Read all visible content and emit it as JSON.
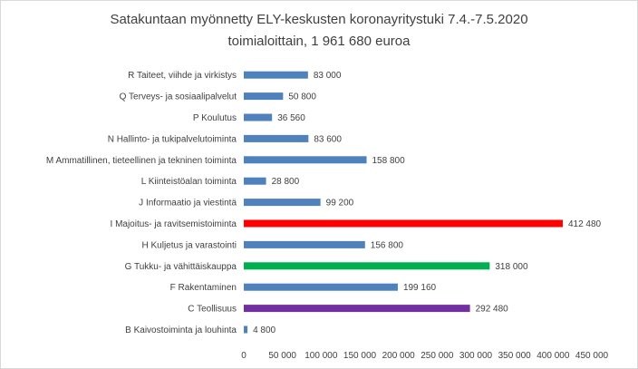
{
  "chart_data": {
    "type": "bar",
    "orientation": "horizontal",
    "title_line1": "Satakuntaan myönnetty ELY-keskusten koronayritystuki 7.4.-7.5.2020",
    "title_line2": "toimialoittain, 1 961 680 euroa",
    "categories": [
      "R  Taiteet, viihde ja virkistys",
      "Q  Terveys- ja sosiaalipalvelut",
      "P  Koulutus",
      "N  Hallinto- ja tukipalvelutoiminta",
      "M  Ammatillinen, tieteellinen ja tekninen toiminta",
      "L  Kiinteistöalan toiminta",
      "J  Informaatio ja viestintä",
      "I  Majoitus- ja ravitsemistoiminta",
      "H  Kuljetus ja varastointi",
      "G  Tukku- ja vähittäiskauppa",
      "F  Rakentaminen",
      "C  Teollisuus",
      "B  Kaivostoiminta ja louhinta"
    ],
    "values": [
      83000,
      50800,
      36560,
      83600,
      158800,
      28800,
      99200,
      412480,
      156800,
      318000,
      199160,
      292480,
      4800
    ],
    "value_labels": [
      "83 000",
      "50 800",
      "36 560",
      "83 600",
      "158 800",
      "28 800",
      "99 200",
      "412 480",
      "156 800",
      "318 000",
      "199 160",
      "292 480",
      "4 800"
    ],
    "bar_colors": [
      "#4f81bd",
      "#4f81bd",
      "#4f81bd",
      "#4f81bd",
      "#4f81bd",
      "#4f81bd",
      "#4f81bd",
      "#ff0000",
      "#4f81bd",
      "#00b050",
      "#4f81bd",
      "#7030a0",
      "#4f81bd"
    ],
    "xlim": [
      0,
      450000
    ],
    "x_ticks": [
      0,
      50000,
      100000,
      150000,
      200000,
      250000,
      300000,
      350000,
      400000,
      450000
    ],
    "x_tick_labels": [
      "0",
      "50 000",
      "100 000",
      "150 000",
      "200 000",
      "250 000",
      "300 000",
      "350 000",
      "400 000",
      "450 000"
    ],
    "grid": false,
    "legend": "none"
  }
}
